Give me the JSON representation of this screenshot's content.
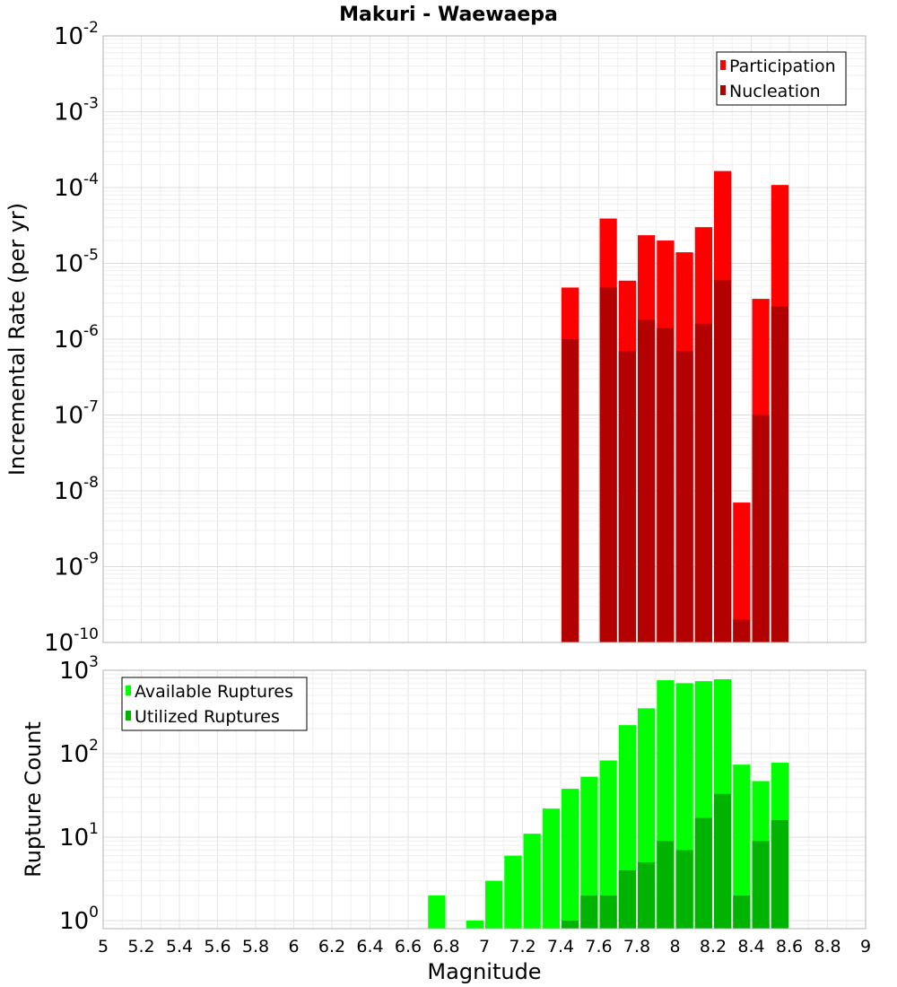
{
  "chart_data": [
    {
      "type": "bar",
      "title": "Makuri - Waewaepa",
      "xlabel": "",
      "ylabel": "Incremental Rate (per yr)",
      "yscale": "log",
      "ylim": [
        1e-10,
        0.01
      ],
      "xlim": [
        5,
        9
      ],
      "yticks": [
        {
          "base": "10",
          "exp": "-2"
        },
        {
          "base": "10",
          "exp": "-3"
        },
        {
          "base": "10",
          "exp": "-4"
        },
        {
          "base": "10",
          "exp": "-5"
        },
        {
          "base": "10",
          "exp": "-6"
        },
        {
          "base": "10",
          "exp": "-7"
        },
        {
          "base": "10",
          "exp": "-8"
        },
        {
          "base": "10",
          "exp": "-9"
        },
        {
          "base": "10",
          "exp": "-10"
        }
      ],
      "grid": true,
      "legend": "top-right",
      "series": [
        {
          "name": "Participation",
          "color": "#ff0000",
          "points": [
            {
              "x": 7.45,
              "y": 4.8e-06
            },
            {
              "x": 7.65,
              "y": 3.9e-05
            },
            {
              "x": 7.75,
              "y": 5.9e-06
            },
            {
              "x": 7.85,
              "y": 2.35e-05
            },
            {
              "x": 7.95,
              "y": 2e-05
            },
            {
              "x": 8.05,
              "y": 1.4e-05
            },
            {
              "x": 8.15,
              "y": 3e-05
            },
            {
              "x": 8.25,
              "y": 0.000165
            },
            {
              "x": 8.35,
              "y": 7e-09
            },
            {
              "x": 8.45,
              "y": 3.4e-06
            },
            {
              "x": 8.55,
              "y": 0.000108
            }
          ]
        },
        {
          "name": "Nucleation",
          "color": "#b30000",
          "points": [
            {
              "x": 7.45,
              "y": 1e-06
            },
            {
              "x": 7.65,
              "y": 4.8e-06
            },
            {
              "x": 7.75,
              "y": 7e-07
            },
            {
              "x": 7.85,
              "y": 1.8e-06
            },
            {
              "x": 7.95,
              "y": 1.4e-06
            },
            {
              "x": 8.05,
              "y": 7e-07
            },
            {
              "x": 8.15,
              "y": 1.6e-06
            },
            {
              "x": 8.25,
              "y": 6e-06
            },
            {
              "x": 8.35,
              "y": 2e-10
            },
            {
              "x": 8.45,
              "y": 1e-07
            },
            {
              "x": 8.55,
              "y": 2.7e-06
            }
          ]
        }
      ]
    },
    {
      "type": "bar",
      "title": "",
      "xlabel": "Magnitude",
      "ylabel": "Rupture Count",
      "yscale": "log",
      "ylim": [
        0.8,
        1000
      ],
      "xlim": [
        5,
        9
      ],
      "xticks": [
        "5",
        "5.2",
        "5.4",
        "5.6",
        "5.8",
        "6",
        "6.2",
        "6.4",
        "6.6",
        "6.8",
        "7",
        "7.2",
        "7.4",
        "7.6",
        "7.8",
        "8",
        "8.2",
        "8.4",
        "8.6",
        "8.8",
        "9"
      ],
      "yticks": [
        {
          "base": "10",
          "exp": "3"
        },
        {
          "base": "10",
          "exp": "2"
        },
        {
          "base": "10",
          "exp": "1"
        },
        {
          "base": "10",
          "exp": "0"
        }
      ],
      "grid": true,
      "legend": "top-left",
      "series": [
        {
          "name": "Available Ruptures",
          "color": "#00ff00",
          "points": [
            {
              "x": 6.75,
              "y": 2
            },
            {
              "x": 6.95,
              "y": 1
            },
            {
              "x": 7.05,
              "y": 3
            },
            {
              "x": 7.15,
              "y": 6
            },
            {
              "x": 7.25,
              "y": 11
            },
            {
              "x": 7.35,
              "y": 22
            },
            {
              "x": 7.45,
              "y": 38
            },
            {
              "x": 7.55,
              "y": 53
            },
            {
              "x": 7.65,
              "y": 83
            },
            {
              "x": 7.75,
              "y": 220
            },
            {
              "x": 7.85,
              "y": 350
            },
            {
              "x": 7.95,
              "y": 760
            },
            {
              "x": 8.05,
              "y": 700
            },
            {
              "x": 8.15,
              "y": 740
            },
            {
              "x": 8.25,
              "y": 780
            },
            {
              "x": 8.35,
              "y": 74
            },
            {
              "x": 8.45,
              "y": 47
            },
            {
              "x": 8.55,
              "y": 78
            }
          ]
        },
        {
          "name": "Utilized Ruptures",
          "color": "#00b300",
          "points": [
            {
              "x": 7.45,
              "y": 1
            },
            {
              "x": 7.55,
              "y": 2
            },
            {
              "x": 7.65,
              "y": 2
            },
            {
              "x": 7.75,
              "y": 4
            },
            {
              "x": 7.85,
              "y": 5
            },
            {
              "x": 7.95,
              "y": 9
            },
            {
              "x": 8.05,
              "y": 7
            },
            {
              "x": 8.15,
              "y": 17
            },
            {
              "x": 8.25,
              "y": 33
            },
            {
              "x": 8.35,
              "y": 2
            },
            {
              "x": 8.45,
              "y": 9
            },
            {
              "x": 8.55,
              "y": 16
            }
          ]
        }
      ]
    }
  ]
}
